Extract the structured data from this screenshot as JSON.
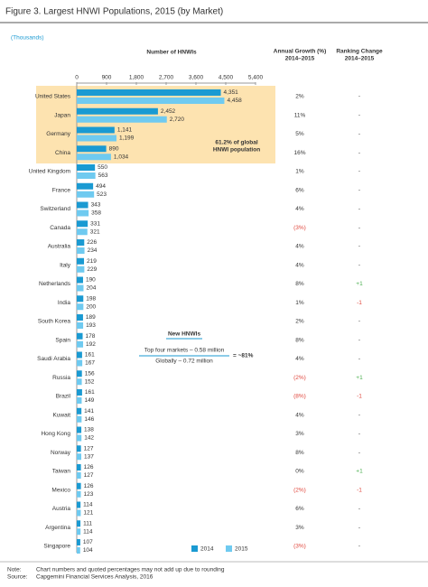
{
  "chart_data": {
    "type": "bar",
    "orientation": "horizontal",
    "title": "Figure 3. Largest HNWI Populations, 2015 (by Market)",
    "unit_note": "(Thousands)",
    "value_axis_title": "Number of HNWIs",
    "categories": [
      "United States",
      "Japan",
      "Germany",
      "China",
      "United Kingdom",
      "France",
      "Switzerland",
      "Canada",
      "Australia",
      "Italy",
      "Netherlands",
      "India",
      "South Korea",
      "Spain",
      "Saudi Arabia",
      "Russia",
      "Brazil",
      "Kuwait",
      "Hong Kong",
      "Norway",
      "Taiwan",
      "Mexico",
      "Austria",
      "Argentina",
      "Singapore"
    ],
    "series": [
      {
        "name": "2014",
        "color": "#1a9ad2",
        "values": [
          4351,
          2452,
          1141,
          890,
          550,
          494,
          343,
          331,
          226,
          219,
          190,
          198,
          189,
          178,
          161,
          156,
          161,
          141,
          138,
          127,
          126,
          126,
          114,
          111,
          107
        ],
        "value_labels": [
          "4,351",
          "2,452",
          "1,141",
          "890",
          "550",
          "494",
          "343",
          "331",
          "226",
          "219",
          "190",
          "198",
          "189",
          "178",
          "161",
          "156",
          "161",
          "141",
          "138",
          "127",
          "126",
          "126",
          "114",
          "111",
          "107"
        ]
      },
      {
        "name": "2015",
        "color": "#6fcaf0",
        "values": [
          4458,
          2720,
          1199,
          1034,
          563,
          523,
          358,
          321,
          234,
          229,
          204,
          200,
          193,
          192,
          167,
          152,
          149,
          146,
          142,
          137,
          127,
          123,
          121,
          114,
          104
        ],
        "value_labels": [
          "4,458",
          "2,720",
          "1,199",
          "1,034",
          "563",
          "523",
          "358",
          "321",
          "234",
          "229",
          "204",
          "200",
          "193",
          "192",
          "167",
          "152",
          "149",
          "146",
          "142",
          "137",
          "127",
          "123",
          "121",
          "114",
          "104"
        ]
      }
    ],
    "xlim": [
      0,
      5400
    ],
    "xticks": [
      0,
      900,
      {
        "value": 1800,
        "label": "1,800"
      },
      {
        "value": 2700,
        "label": "2,700"
      },
      {
        "value": 3600,
        "label": "3,600"
      },
      {
        "value": 4500,
        "label": "4,500"
      },
      {
        "value": 5400,
        "label": "5,400"
      }
    ],
    "growth_header": [
      "Annual Growth (%)",
      "2014–2015"
    ],
    "growth": [
      "2%",
      "11%",
      "5%",
      "16%",
      "1%",
      "6%",
      "4%",
      "(3%)",
      "4%",
      "4%",
      "8%",
      "1%",
      "2%",
      "8%",
      "4%",
      "(2%)",
      "(8%)",
      "4%",
      "3%",
      "8%",
      "0%",
      "(2%)",
      "6%",
      "3%",
      "(3%)"
    ],
    "ranking_header": [
      "Ranking Change",
      "2014–2015"
    ],
    "ranking": [
      "-",
      "-",
      "-",
      "-",
      "-",
      "-",
      "-",
      "-",
      "-",
      "-",
      "+1",
      "-1",
      "-",
      "-",
      "-",
      "+1",
      "-1",
      "-",
      "-",
      "-",
      "+1",
      "-1",
      "-",
      "-",
      "-"
    ],
    "negative_color": "#e0463c",
    "positive_color": "#4caf50",
    "highlight": {
      "text": [
        "61.2% of global",
        "HNWI population"
      ],
      "color": "#fde3b0"
    },
    "annotation": {
      "title": "New HNWIs",
      "lines": [
        "Top four markets – 0.58 million",
        "Globally – 0.72 million"
      ],
      "result": "= ~81%"
    },
    "notes": [
      [
        "Note:",
        "Chart numbers and quoted percentages may not add up due to rounding"
      ],
      [
        "Source:",
        "Capgemini Financial Services Analysis, 2016"
      ]
    ]
  }
}
